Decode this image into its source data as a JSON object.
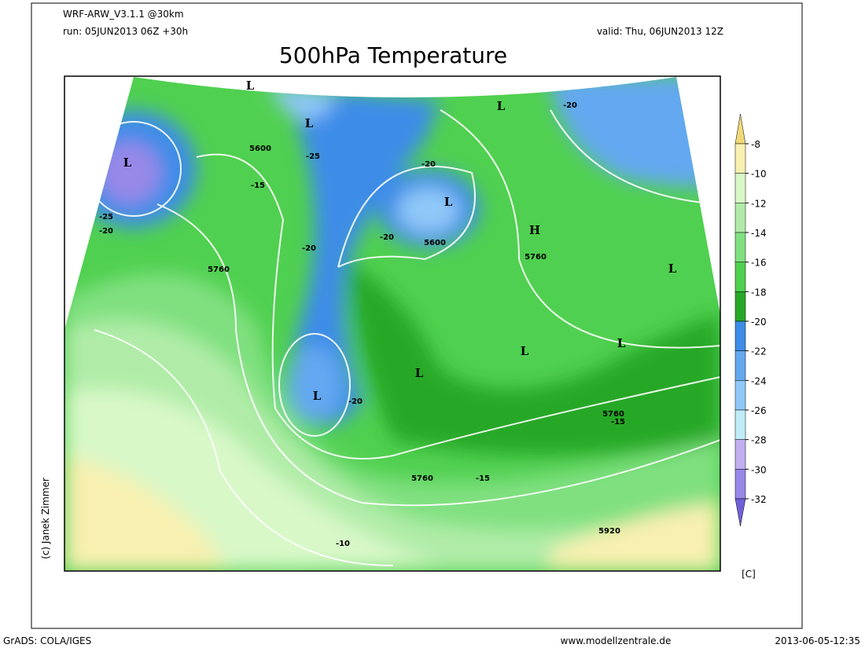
{
  "header": {
    "model": "WRF-ARW_V3.1.1 @30km",
    "run": "run: 05JUN2013 06Z +30h",
    "valid": "valid: Thu, 06JUN2013 12Z",
    "title": "500hPa Temperature"
  },
  "colorbar": {
    "unit": "[C]",
    "labels": [
      "-8",
      "-10",
      "-12",
      "-14",
      "-16",
      "-18",
      "-20",
      "-22",
      "-24",
      "-26",
      "-28",
      "-30",
      "-32"
    ],
    "colors": [
      "#f0d878",
      "#f8f0b0",
      "#d8f8c8",
      "#b0eca8",
      "#80e080",
      "#50d050",
      "#28a828",
      "#3c8ce8",
      "#64a8f0",
      "#90c8f8",
      "#c0ecf8",
      "#c0b0f0",
      "#9888e8",
      "#7060d8"
    ]
  },
  "map_labels": [
    "L",
    "L",
    "L",
    "L",
    "H",
    "L",
    "L",
    "L",
    "L",
    "L",
    "L",
    "5600",
    "5600",
    "5760",
    "5760",
    "5760",
    "5760",
    "5920",
    "-25",
    "-20",
    "-20",
    "-20",
    "-15",
    "-20",
    "-25",
    "-20",
    "-15",
    "-15",
    "-10",
    "-20"
  ],
  "credit": "(c) Janek Zimmer",
  "footer": {
    "left": "GrADS: COLA/IGES",
    "center": "www.modellzentrale.de",
    "right": "2013-06-05-12:35"
  }
}
